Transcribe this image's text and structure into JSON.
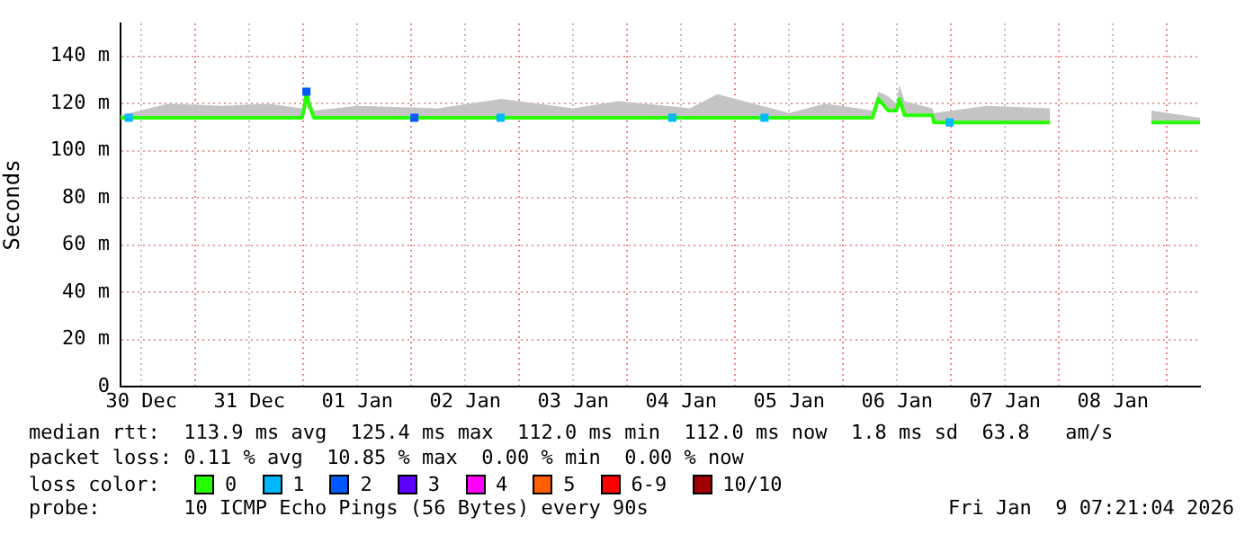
{
  "chart_data": {
    "type": "line",
    "ylabel": "Seconds",
    "legend_title": "loss color:",
    "legend": "bottom",
    "grid": true,
    "xlim": [
      "2025-12-30T07:20",
      "2026-01-09T07:20"
    ],
    "xticks": [
      {
        "value": "2025-12-30T12:00",
        "label": "30 Dec"
      },
      {
        "value": "2025-12-31T00:00",
        "label": null
      },
      {
        "value": "2025-12-31T12:00",
        "label": "31 Dec"
      },
      {
        "value": "2026-01-01T00:00",
        "label": null
      },
      {
        "value": "2026-01-01T12:00",
        "label": "01 Jan"
      },
      {
        "value": "2026-01-02T00:00",
        "label": null
      },
      {
        "value": "2026-01-02T12:00",
        "label": "02 Jan"
      },
      {
        "value": "2026-01-03T00:00",
        "label": null
      },
      {
        "value": "2026-01-03T12:00",
        "label": "03 Jan"
      },
      {
        "value": "2026-01-04T00:00",
        "label": null
      },
      {
        "value": "2026-01-04T12:00",
        "label": "04 Jan"
      },
      {
        "value": "2026-01-05T00:00",
        "label": null
      },
      {
        "value": "2026-01-05T12:00",
        "label": "05 Jan"
      },
      {
        "value": "2026-01-06T00:00",
        "label": null
      },
      {
        "value": "2026-01-06T12:00",
        "label": "06 Jan"
      },
      {
        "value": "2026-01-07T00:00",
        "label": null
      },
      {
        "value": "2026-01-07T12:00",
        "label": "07 Jan"
      },
      {
        "value": "2026-01-08T00:00",
        "label": null
      },
      {
        "value": "2026-01-08T12:00",
        "label": "08 Jan"
      },
      {
        "value": "2026-01-09T00:00",
        "label": null
      }
    ],
    "ylim": [
      0,
      154
    ],
    "yticks": [
      0,
      {
        "value": 20,
        "label": "20 m"
      },
      {
        "value": 40,
        "label": "40 m"
      },
      {
        "value": 60,
        "label": "60 m"
      },
      {
        "value": 80,
        "label": "80 m"
      },
      {
        "value": 100,
        "label": "100 m"
      },
      {
        "value": 120,
        "label": "120 m"
      },
      {
        "value": 140,
        "label": "140 m"
      }
    ],
    "series": [
      {
        "name": "0",
        "color": "#26ff00",
        "x": [
          "2025-12-30T07:20",
          "2025-12-30T18:00",
          "2025-12-31T06:00",
          "2025-12-31T16:00",
          "2025-12-31T23:40",
          "2026-01-01T00:10",
          "2026-01-01T00:40",
          "2026-01-01T01:20",
          "2026-01-01T02:20",
          "2026-01-01T12:00",
          "2026-01-02T06:00",
          "2026-01-02T20:00",
          "2026-01-03T12:00",
          "2026-01-03T22:00",
          "2026-01-04T14:00",
          "2026-01-04T20:00",
          "2026-01-05T12:00",
          "2026-01-05T20:00",
          "2026-01-06T06:30",
          "2026-01-06T07:50",
          "2026-01-06T10:00",
          "2026-01-06T11:50",
          "2026-01-06T12:30",
          "2026-01-06T13:40",
          "2026-01-06T19:50",
          "2026-01-06T20:10",
          "2026-01-07T08:00",
          "2026-01-07T22:00",
          "2026-01-07T22:30",
          "2026-01-08T20:30",
          "2026-01-09T07:20"
        ],
        "values": [
          114,
          114,
          114,
          114,
          114,
          118,
          125,
          119,
          114,
          114,
          114,
          114,
          114,
          114,
          114,
          114,
          114,
          114,
          114,
          122,
          117,
          117,
          122,
          115,
          115,
          112,
          112,
          112,
          null,
          112,
          112
        ],
        "lower": [
          114,
          114,
          114,
          114,
          114,
          118,
          125,
          119,
          114,
          114,
          114,
          114,
          114,
          114,
          114,
          114,
          114,
          114,
          114,
          122,
          117,
          117,
          122,
          115,
          115,
          112,
          112,
          112,
          null,
          112,
          112
        ],
        "upper": [
          115,
          120,
          119,
          120,
          118,
          120,
          128,
          122,
          117,
          119,
          118,
          122,
          118,
          121,
          118,
          124,
          116,
          120,
          117,
          125,
          123,
          120,
          128,
          121,
          118,
          116,
          119,
          118,
          null,
          117,
          114
        ]
      },
      {
        "name": "1",
        "color": "#00b8ff",
        "type": "scatter",
        "marker": "square",
        "x": [
          "2025-12-30T09:10",
          "2026-01-02T19:50",
          "2026-01-04T10:00",
          "2026-01-05T06:30",
          "2026-01-06T23:40"
        ],
        "values": [
          114,
          114,
          114,
          114,
          112
        ]
      },
      {
        "name": "2",
        "color": "#0059ff",
        "type": "scatter",
        "marker": "square",
        "x": [
          "2026-01-01T00:40",
          "2026-01-02T00:40"
        ],
        "values": [
          125,
          114
        ]
      },
      {
        "name": "3",
        "color": "#5e00ff",
        "type": "scatter"
      },
      {
        "name": "4",
        "color": "#ff00ff",
        "type": "scatter"
      },
      {
        "name": "5",
        "color": "#ff5e00",
        "type": "scatter"
      },
      {
        "name": "6-9",
        "color": "#ff0000",
        "type": "scatter"
      },
      {
        "name": "10/10",
        "color": "#a10000",
        "type": "scatter"
      }
    ],
    "annotations": [
      "median rtt:  113.9 ms avg  125.4 ms max  112.0 ms min  112.0 ms now  1.8 ms sd  63.8   am/s",
      "packet loss: 0.11 % avg  10.85 % max  0.00 % min  0.00 % now",
      "probe:       10 ICMP Echo Pings (56 Bytes) every 90s",
      "Fri Jan  9 07:21:04 2026"
    ]
  }
}
